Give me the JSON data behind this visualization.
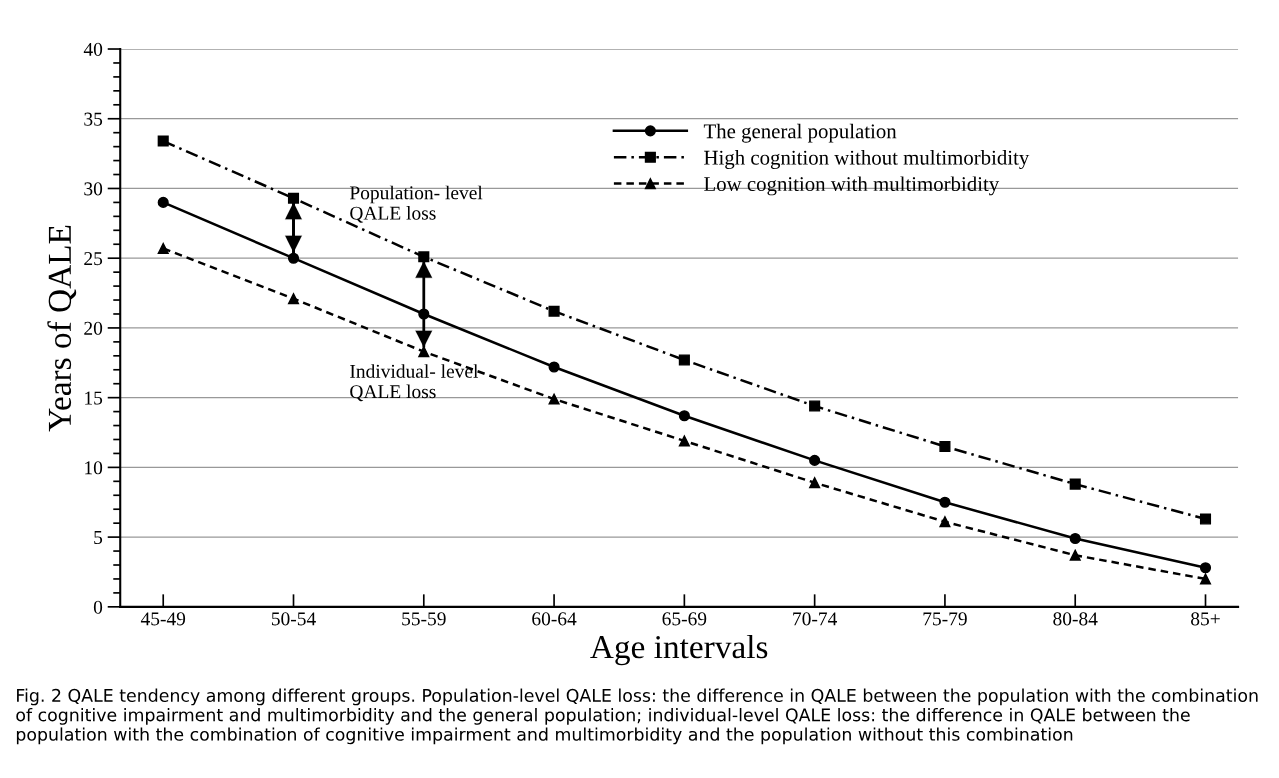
{
  "chart_data": {
    "type": "line",
    "xlabel": "Age intervals",
    "ylabel": "Years of QALE",
    "categories": [
      "45-49",
      "50-54",
      "55-59",
      "60-64",
      "65-69",
      "70-74",
      "75-79",
      "80-84",
      "85+"
    ],
    "series": [
      {
        "name": "The general population",
        "color": "#000000",
        "marker": "circle",
        "line_style": "solid",
        "values": [
          29.0,
          25.0,
          21.0,
          17.2,
          13.7,
          10.5,
          7.5,
          4.9,
          2.8
        ],
        "errors": [
          null,
          [
            25.4,
            29.0
          ],
          [
            18.6,
            24.8
          ],
          null,
          null,
          null,
          null,
          null,
          null
        ]
      },
      {
        "name": "High cognition without multimorbidity",
        "color": "#000000",
        "marker": "square",
        "line_style": "dashdot",
        "values": [
          33.4,
          29.3,
          25.1,
          21.2,
          17.7,
          14.4,
          11.5,
          8.8,
          6.3
        ]
      },
      {
        "name": "Low cognition with multimorbidity",
        "color": "#000000",
        "marker": "triangle",
        "line_style": "dashed",
        "values": [
          25.7,
          22.1,
          18.3,
          14.9,
          11.9,
          8.9,
          6.1,
          3.7,
          2.0
        ]
      }
    ],
    "ylim": [
      0,
      40
    ],
    "yticks": [
      0,
      5,
      10,
      15,
      20,
      25,
      30,
      35,
      40
    ],
    "grid": "y",
    "legend": "top right",
    "annotations": [
      "Population- level\nQALE loss",
      "Individual- level\nQALE loss",
      "Fig. 2 QALE tendency among different groups. Population-level QALE loss: the difference in QALE between the population with the combination of cognitive impairment and multimorbidity and the general population; individual-level QALE loss: the difference in QALE between the population with the combination of cognitive impairment and multimorbidity and the population without this combination"
    ]
  }
}
